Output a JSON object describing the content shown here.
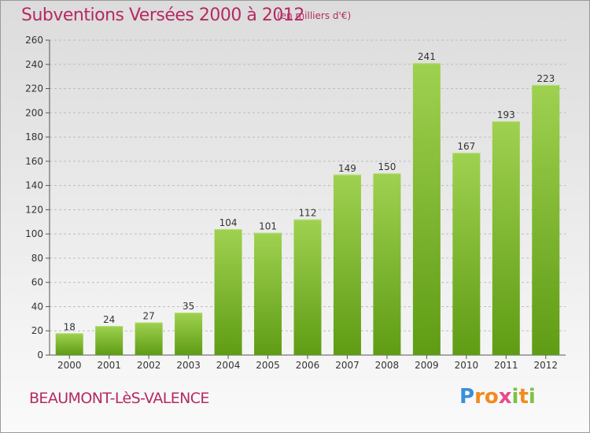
{
  "header": {
    "title": "Subventions Versées 2000 à 2012",
    "subtitle": "(en milliers d'€)"
  },
  "footer": {
    "place": "BEAUMONT-LèS-VALENCE",
    "logo": "Proxiti"
  },
  "colors": {
    "title": "#b52a62",
    "bar_top": "#9fd150",
    "bar_bottom": "#5f9c14",
    "logo": [
      "#3a8fd8",
      "#f28a1e",
      "#7cc242",
      "#e84a8a"
    ]
  },
  "chart_data": {
    "type": "bar",
    "title": "Subventions Versées 2000 à 2012",
    "subtitle": "(en milliers d'€)",
    "xlabel": "",
    "ylabel": "",
    "categories": [
      "2000",
      "2001",
      "2002",
      "2003",
      "2004",
      "2005",
      "2006",
      "2007",
      "2008",
      "2009",
      "2010",
      "2011",
      "2012"
    ],
    "values": [
      18,
      24,
      27,
      35,
      104,
      101,
      112,
      149,
      150,
      241,
      167,
      193,
      223
    ],
    "ylim": [
      0,
      260
    ],
    "yticks": [
      0,
      20,
      40,
      60,
      80,
      100,
      120,
      140,
      160,
      180,
      200,
      220,
      240,
      260
    ],
    "grid": true
  }
}
